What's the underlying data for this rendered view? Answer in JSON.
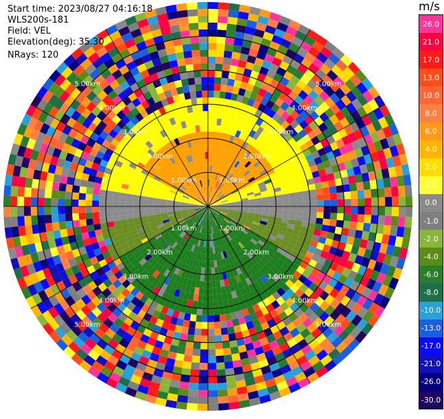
{
  "info": {
    "start_time": "Start time: 2023/08/27 04:16:18",
    "station": "WLS200s-181",
    "field": "Field: VEL",
    "elevation": "Elevation(deg): 35.30",
    "nrays": "NRays: 120"
  },
  "chart_data": {
    "type": "heatmap",
    "subtype": "polar-ppi",
    "field": "VEL",
    "unit": "m/s",
    "n_rays": 120,
    "n_range_gates": 30,
    "range_max_km": 6.0,
    "range_rings_km": [
      1,
      2,
      3,
      4,
      5
    ],
    "ring_labels": [
      "1.00km",
      "2.00km",
      "3.00km",
      "4.00km",
      "5.00km"
    ],
    "spoke_angles_deg": [
      0,
      30,
      60,
      90,
      120,
      150,
      180,
      210,
      240,
      270,
      300,
      330
    ],
    "colorbar": {
      "unit": "m/s",
      "ticks": [
        "26.0",
        "21.0",
        "17.0",
        "13.0",
        "10.0",
        "8.0",
        "6.0",
        "4.0",
        "2.0",
        "1.0",
        "0.0",
        "-1.0",
        "-2.0",
        "-4.0",
        "-6.0",
        "-8.0",
        "-10.0",
        "-13.0",
        "-17.0",
        "-21.0",
        "-26.0",
        "-30.0"
      ],
      "colors": [
        "#ff3399",
        "#ff0040",
        "#ff1a1a",
        "#ff4d1a",
        "#ff6633",
        "#ff8040",
        "#ff9a1a",
        "#ffb400",
        "#ffdd00",
        "#ffff33",
        "#8a8a8a",
        "#7f7f7f",
        "#88b53a",
        "#5a8c1a",
        "#2a7d2a",
        "#1f6e4a",
        "#2aa0d8",
        "#1a5fe0",
        "#0a0aff",
        "#1010c0",
        "#000080",
        "#200060"
      ]
    },
    "inner_region": {
      "inner_gate_end_km": 3.2,
      "positive_halo_color": "#ffff00",
      "core_north_color": "#ff9f00",
      "core_south_color": "#1e7e1e",
      "near_zero_color": "#8c8c8c"
    },
    "outer_region": "noise",
    "grid": true
  }
}
